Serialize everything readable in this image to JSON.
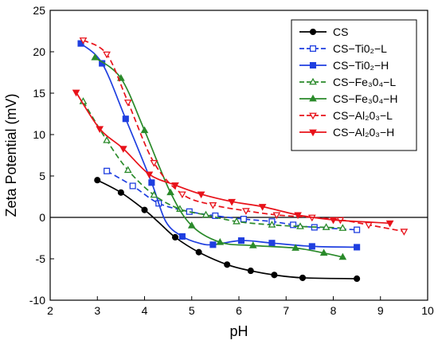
{
  "chart_data": {
    "type": "line",
    "title": "",
    "xlabel": "pH",
    "ylabel": "Zeta Potential (mV)",
    "xlim": [
      2,
      10
    ],
    "ylim": [
      -10,
      25
    ],
    "x_ticks": [
      2,
      3,
      4,
      5,
      6,
      7,
      8,
      9,
      10
    ],
    "y_ticks": [
      -10,
      -5,
      0,
      5,
      10,
      15,
      20,
      25
    ],
    "grid": false,
    "reference_line_y": 0,
    "legend_position": "top-right",
    "series": [
      {
        "name": "CS",
        "color": "#000000",
        "dash": "solid",
        "marker": "circle",
        "filled": true,
        "points": [
          [
            3.0,
            4.5
          ],
          [
            3.5,
            3.0
          ],
          [
            4.0,
            0.9
          ],
          [
            4.65,
            -2.4
          ],
          [
            5.15,
            -4.2
          ],
          [
            5.75,
            -5.7
          ],
          [
            6.25,
            -6.45
          ],
          [
            6.75,
            -6.95
          ],
          [
            7.35,
            -7.3
          ],
          [
            8.5,
            -7.4
          ]
        ],
        "curve": [
          [
            3.0,
            4.5
          ],
          [
            3.5,
            3.0
          ],
          [
            4.0,
            0.9
          ],
          [
            4.3,
            -0.6
          ],
          [
            4.65,
            -2.4
          ],
          [
            5.15,
            -4.2
          ],
          [
            5.75,
            -5.7
          ],
          [
            6.25,
            -6.45
          ],
          [
            6.75,
            -6.95
          ],
          [
            7.35,
            -7.3
          ],
          [
            8.5,
            -7.4
          ]
        ]
      },
      {
        "name": "CS−Ti0₂−L",
        "color": "#1f3fe0",
        "dash": "dashed",
        "marker": "square",
        "filled": false,
        "points": [
          [
            3.2,
            5.6
          ],
          [
            3.75,
            3.8
          ],
          [
            4.3,
            1.7
          ],
          [
            4.95,
            0.7
          ],
          [
            5.5,
            0.2
          ],
          [
            6.1,
            -0.2
          ],
          [
            6.7,
            -0.5
          ],
          [
            7.15,
            -0.9
          ],
          [
            7.6,
            -1.2
          ],
          [
            8.5,
            -1.5
          ]
        ],
        "curve": [
          [
            3.2,
            5.6
          ],
          [
            3.75,
            3.8
          ],
          [
            4.3,
            1.7
          ],
          [
            4.95,
            0.7
          ],
          [
            5.5,
            0.2
          ],
          [
            6.1,
            -0.2
          ],
          [
            6.7,
            -0.5
          ],
          [
            7.15,
            -0.9
          ],
          [
            7.6,
            -1.2
          ],
          [
            8.5,
            -1.5
          ]
        ]
      },
      {
        "name": "CS−Ti0₂−H",
        "color": "#1f3fe0",
        "dash": "solid",
        "marker": "square",
        "filled": true,
        "points": [
          [
            2.65,
            21.0
          ],
          [
            3.1,
            18.6
          ],
          [
            3.6,
            11.9
          ],
          [
            4.15,
            4.2
          ],
          [
            4.8,
            -2.3
          ],
          [
            5.45,
            -3.3
          ],
          [
            6.05,
            -2.8
          ],
          [
            6.7,
            -3.1
          ],
          [
            7.55,
            -3.5
          ],
          [
            8.5,
            -3.6
          ]
        ],
        "curve": [
          [
            2.65,
            21.0
          ],
          [
            3.1,
            18.6
          ],
          [
            3.6,
            11.9
          ],
          [
            4.15,
            4.2
          ],
          [
            4.45,
            -0.5
          ],
          [
            4.8,
            -2.3
          ],
          [
            5.15,
            -3.1
          ],
          [
            5.45,
            -3.3
          ],
          [
            6.05,
            -2.8
          ],
          [
            6.7,
            -3.1
          ],
          [
            7.55,
            -3.5
          ],
          [
            8.5,
            -3.6
          ]
        ]
      },
      {
        "name": "CS−Fe₃0₄−L",
        "color": "#2a8a2a",
        "dash": "dashed",
        "marker": "triangle-up",
        "filled": false,
        "points": [
          [
            2.7,
            14.0
          ],
          [
            3.2,
            9.3
          ],
          [
            3.65,
            5.7
          ],
          [
            4.2,
            2.7
          ],
          [
            4.75,
            1.0
          ],
          [
            5.3,
            0.3
          ],
          [
            5.95,
            -0.5
          ],
          [
            6.7,
            -0.9
          ],
          [
            7.3,
            -1.1
          ],
          [
            7.85,
            -1.2
          ],
          [
            8.2,
            -1.3
          ]
        ],
        "curve": [
          [
            2.7,
            14.0
          ],
          [
            3.2,
            9.3
          ],
          [
            3.65,
            5.7
          ],
          [
            4.2,
            2.7
          ],
          [
            4.75,
            1.0
          ],
          [
            5.3,
            0.3
          ],
          [
            5.95,
            -0.5
          ],
          [
            6.7,
            -0.9
          ],
          [
            7.3,
            -1.1
          ],
          [
            7.85,
            -1.2
          ],
          [
            8.2,
            -1.3
          ]
        ]
      },
      {
        "name": "CS−Fe₃0₄−H",
        "color": "#2a8a2a",
        "dash": "solid",
        "marker": "triangle-up",
        "filled": true,
        "points": [
          [
            2.95,
            19.3
          ],
          [
            3.5,
            16.8
          ],
          [
            4.0,
            10.5
          ],
          [
            4.55,
            3.0
          ],
          [
            5.0,
            -1.0
          ],
          [
            5.6,
            -3.0
          ],
          [
            6.3,
            -3.4
          ],
          [
            7.2,
            -3.7
          ],
          [
            7.8,
            -4.3
          ],
          [
            8.2,
            -4.8
          ]
        ],
        "curve": [
          [
            2.95,
            19.3
          ],
          [
            3.5,
            16.8
          ],
          [
            4.0,
            10.5
          ],
          [
            4.55,
            3.0
          ],
          [
            5.0,
            -1.0
          ],
          [
            5.6,
            -3.0
          ],
          [
            6.3,
            -3.4
          ],
          [
            7.2,
            -3.7
          ],
          [
            7.8,
            -4.3
          ],
          [
            8.2,
            -4.8
          ]
        ]
      },
      {
        "name": "CS−Al₂0₃−L",
        "color": "#e8121a",
        "dash": "dashed",
        "marker": "triangle-down",
        "filled": false,
        "points": [
          [
            2.7,
            21.4
          ],
          [
            3.2,
            19.7
          ],
          [
            3.65,
            13.9
          ],
          [
            4.2,
            6.6
          ],
          [
            4.8,
            2.8
          ],
          [
            5.45,
            1.5
          ],
          [
            6.15,
            0.8
          ],
          [
            6.8,
            0.3
          ],
          [
            7.55,
            0.0
          ],
          [
            8.15,
            -0.3
          ],
          [
            8.75,
            -0.9
          ],
          [
            9.5,
            -1.7
          ]
        ],
        "curve": [
          [
            2.7,
            21.4
          ],
          [
            3.2,
            19.7
          ],
          [
            3.65,
            13.9
          ],
          [
            4.2,
            6.6
          ],
          [
            4.8,
            2.8
          ],
          [
            5.45,
            1.5
          ],
          [
            6.15,
            0.8
          ],
          [
            6.8,
            0.3
          ],
          [
            7.55,
            0.0
          ],
          [
            8.15,
            -0.3
          ],
          [
            8.75,
            -0.9
          ],
          [
            9.5,
            -1.7
          ]
        ]
      },
      {
        "name": "CS−Al₂0₃−H",
        "color": "#e8121a",
        "dash": "solid",
        "marker": "triangle-down",
        "filled": true,
        "points": [
          [
            2.55,
            15.1
          ],
          [
            3.05,
            10.7
          ],
          [
            3.55,
            8.3
          ],
          [
            4.1,
            5.2
          ],
          [
            4.65,
            3.9
          ],
          [
            5.2,
            2.8
          ],
          [
            5.85,
            1.9
          ],
          [
            6.5,
            1.3
          ],
          [
            7.25,
            0.3
          ],
          [
            8.0,
            -0.3
          ],
          [
            9.2,
            -0.7
          ]
        ],
        "curve": [
          [
            2.55,
            15.1
          ],
          [
            3.05,
            10.7
          ],
          [
            3.55,
            8.3
          ],
          [
            4.1,
            5.2
          ],
          [
            4.65,
            3.9
          ],
          [
            5.2,
            2.8
          ],
          [
            5.85,
            1.9
          ],
          [
            6.5,
            1.3
          ],
          [
            7.25,
            0.3
          ],
          [
            8.0,
            -0.3
          ],
          [
            9.2,
            -0.7
          ]
        ]
      }
    ]
  }
}
